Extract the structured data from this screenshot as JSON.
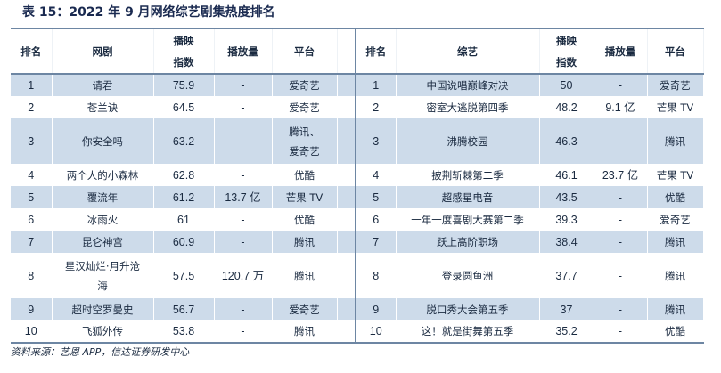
{
  "title": "表 15：2022 年 9 月网络综艺剧集热度排名",
  "left_headers": [
    "排名",
    "网剧",
    "播映指数",
    "播放量",
    "平台"
  ],
  "right_headers": [
    "排名",
    "综艺",
    "播映指数",
    "播放量",
    "平台"
  ],
  "left_rows": [
    [
      "1",
      "请君",
      "75.9",
      "-",
      "爱奇艺"
    ],
    [
      "2",
      "苍兰诀",
      "64.5",
      "-",
      "爱奇艺"
    ],
    [
      "3",
      "你安全吗",
      "63.2",
      "-",
      "腾讯、爱奇艺"
    ],
    [
      "4",
      "两个人的小森林",
      "62.8",
      "-",
      "优酷"
    ],
    [
      "5",
      "覆流年",
      "61.2",
      "13.7 亿",
      "芒果 TV"
    ],
    [
      "6",
      "冰雨火",
      "61",
      "-",
      "优酷"
    ],
    [
      "7",
      "昆仑神宫",
      "60.9",
      "-",
      "腾讯"
    ],
    [
      "8",
      "星汉灿烂·月升沧海",
      "57.5",
      "120.7 万",
      "腾讯"
    ],
    [
      "9",
      "超时空罗曼史",
      "56.7",
      "-",
      "爱奇艺"
    ],
    [
      "10",
      "飞狐外传",
      "53.8",
      "-",
      "腾讯"
    ]
  ],
  "right_rows": [
    [
      "1",
      "中国说唱巅峰对决",
      "50",
      "-",
      "爱奇艺"
    ],
    [
      "2",
      "密室大逃脱第四季",
      "48.2",
      "9.1 亿",
      "芒果 TV"
    ],
    [
      "3",
      "沸腾校园",
      "46.3",
      "-",
      "腾讯"
    ],
    [
      "4",
      "披荆斩棘第二季",
      "46.1",
      "23.7 亿",
      "芒果 TV"
    ],
    [
      "5",
      "超感星电音",
      "43.5",
      "-",
      "优酷"
    ],
    [
      "6",
      "一年一度喜剧大赛第二季",
      "39.3",
      "-",
      "爱奇艺"
    ],
    [
      "7",
      "跃上高阶职场",
      "38.4",
      "-",
      "腾讯"
    ],
    [
      "8",
      "登录圆鱼洲",
      "37.7",
      "-",
      "腾讯"
    ],
    [
      "9",
      "脱口秀大会第五季",
      "37",
      "-",
      "腾讯"
    ],
    [
      "10",
      "这！就是街舞第五季",
      "35.2",
      "-",
      "优酷"
    ]
  ],
  "source": "资料来源：艺恩 APP，信达证券研发中心",
  "colors": {
    "row_shade": "#cddbea",
    "rule": "#6d86a3"
  }
}
